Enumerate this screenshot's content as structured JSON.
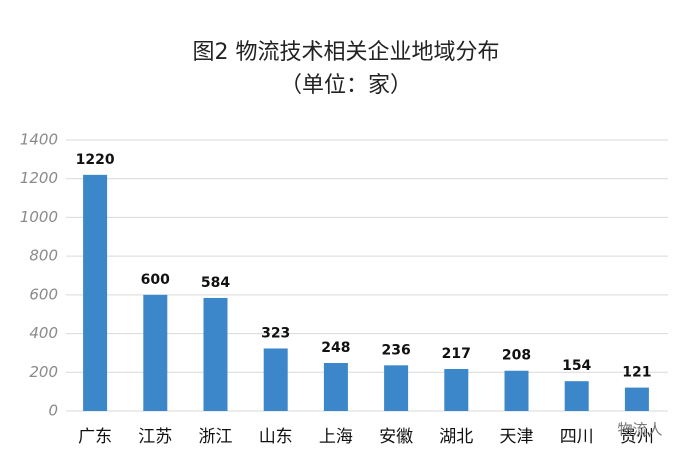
{
  "chart_data": {
    "type": "bar",
    "title": "图2 物流技术相关企业地域分布",
    "subtitle": "（单位：家）",
    "categories": [
      "广东",
      "江苏",
      "浙江",
      "山东",
      "上海",
      "安徽",
      "湖北",
      "天津",
      "四川",
      "贵州"
    ],
    "values": [
      1220,
      600,
      584,
      323,
      248,
      236,
      217,
      208,
      154,
      121
    ],
    "color": "#3b87c9",
    "ylim": [
      0,
      1400
    ],
    "yticks": [
      0,
      200,
      400,
      600,
      800,
      1000,
      1200,
      1400
    ],
    "grid": true,
    "annotation": "物流人"
  }
}
